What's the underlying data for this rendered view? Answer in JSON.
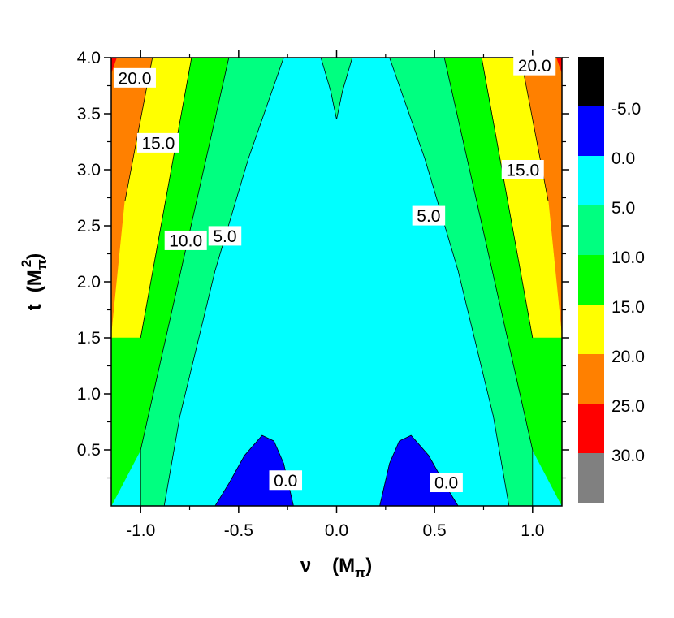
{
  "chart_data": {
    "type": "contour",
    "xlabel": {
      "main": "ν",
      "unit": "M",
      "unit_sub": "π"
    },
    "ylabel": {
      "main": "t",
      "unit": "M",
      "unit_sub": "π",
      "unit_sup": "2"
    },
    "xlim": [
      -1.15,
      1.15
    ],
    "ylim": [
      0.0,
      4.0
    ],
    "x_ticks": [
      -1.0,
      -0.5,
      0.0,
      0.5,
      1.0
    ],
    "x_tick_labels": [
      "-1.0",
      "-0.5",
      "0.0",
      "0.5",
      "1.0"
    ],
    "y_ticks": [
      0.5,
      1.0,
      1.5,
      2.0,
      2.5,
      3.0,
      3.5,
      4.0
    ],
    "y_tick_labels": [
      "0.5",
      "1.0",
      "1.5",
      "2.0",
      "2.5",
      "3.0",
      "3.5",
      "4.0"
    ],
    "levels": [
      {
        "label": "",
        "color": "#000000"
      },
      {
        "label": "-5.0",
        "color": "#0000ff"
      },
      {
        "label": "0.0",
        "color": "#00ffff"
      },
      {
        "label": "5.0",
        "color": "#00ff80"
      },
      {
        "label": "10.0",
        "color": "#00ff00"
      },
      {
        "label": "15.0",
        "color": "#ffff00"
      },
      {
        "label": "20.0",
        "color": "#ff8000"
      },
      {
        "label": "25.0",
        "color": "#ff0000"
      },
      {
        "label": "30.0",
        "color": "#808080"
      }
    ],
    "regions": [
      {
        "name": "region-above-25",
        "color": "#ff0000",
        "points": [
          [
            -1.15,
            3.85
          ],
          [
            -1.15,
            4.0
          ],
          [
            -1.12,
            4.0
          ]
        ]
      },
      {
        "name": "region-above-25",
        "color": "#ff0000",
        "points": [
          [
            1.12,
            4.0
          ],
          [
            1.15,
            4.0
          ],
          [
            1.15,
            3.85
          ]
        ]
      },
      {
        "name": "region-20-25",
        "color": "#ff8000",
        "points": [
          [
            -1.15,
            1.5
          ],
          [
            -1.15,
            3.85
          ],
          [
            -1.12,
            4.0
          ],
          [
            -0.94,
            4.0
          ],
          [
            -1.08,
            2.72
          ]
        ]
      },
      {
        "name": "region-20-25",
        "color": "#ff8000",
        "points": [
          [
            1.15,
            1.5
          ],
          [
            1.15,
            3.85
          ],
          [
            1.12,
            4.0
          ],
          [
            0.94,
            4.0
          ],
          [
            1.08,
            2.72
          ]
        ]
      },
      {
        "name": "region-15-20",
        "color": "#ffff00",
        "points": [
          [
            -1.15,
            1.5
          ],
          [
            -1.08,
            2.72
          ],
          [
            -0.94,
            4.0
          ],
          [
            -0.74,
            4.0
          ],
          [
            -1.0,
            1.5
          ]
        ]
      },
      {
        "name": "region-15-20",
        "color": "#ffff00",
        "points": [
          [
            1.15,
            1.5
          ],
          [
            1.08,
            2.72
          ],
          [
            0.94,
            4.0
          ],
          [
            0.74,
            4.0
          ],
          [
            1.0,
            1.5
          ]
        ]
      },
      {
        "name": "region-10-15",
        "color": "#00ff00",
        "points": [
          [
            -1.15,
            0.0
          ],
          [
            -1.15,
            1.5
          ],
          [
            -1.0,
            1.5
          ],
          [
            -0.74,
            4.0
          ],
          [
            -0.55,
            4.0
          ],
          [
            -1.0,
            0.5
          ]
        ]
      },
      {
        "name": "region-10-15",
        "color": "#00ff00",
        "points": [
          [
            1.15,
            0.0
          ],
          [
            1.15,
            1.5
          ],
          [
            1.0,
            1.5
          ],
          [
            0.74,
            4.0
          ],
          [
            0.55,
            4.0
          ],
          [
            1.0,
            0.5
          ]
        ]
      },
      {
        "name": "region-5-10",
        "color": "#00ff80",
        "points": [
          [
            -1.0,
            0.0
          ],
          [
            -1.0,
            0.5
          ],
          [
            -0.55,
            4.0
          ],
          [
            -0.27,
            4.0
          ],
          [
            -0.45,
            3.1
          ],
          [
            -0.62,
            2.1
          ],
          [
            -0.8,
            0.8
          ],
          [
            -0.88,
            0.0
          ]
        ]
      },
      {
        "name": "region-5-10",
        "color": "#00ff80",
        "points": [
          [
            1.0,
            0.0
          ],
          [
            1.0,
            0.5
          ],
          [
            0.55,
            4.0
          ],
          [
            0.27,
            4.0
          ],
          [
            0.45,
            3.1
          ],
          [
            0.62,
            2.1
          ],
          [
            0.8,
            0.8
          ],
          [
            0.88,
            0.0
          ]
        ]
      },
      {
        "name": "region-5-10",
        "color": "#00ff80",
        "points": [
          [
            -0.08,
            4.0
          ],
          [
            -0.03,
            3.7
          ],
          [
            0.0,
            3.45
          ],
          [
            0.03,
            3.7
          ],
          [
            0.08,
            4.0
          ]
        ]
      },
      {
        "name": "region-0-5",
        "color": "#00ffff",
        "points": [
          [
            -0.88,
            0.0
          ],
          [
            -0.8,
            0.8
          ],
          [
            -0.62,
            2.1
          ],
          [
            -0.45,
            3.1
          ],
          [
            -0.27,
            4.0
          ],
          [
            -0.08,
            4.0
          ],
          [
            -0.03,
            3.7
          ],
          [
            0.0,
            3.45
          ],
          [
            0.03,
            3.7
          ],
          [
            0.08,
            4.0
          ],
          [
            0.27,
            4.0
          ],
          [
            0.45,
            3.1
          ],
          [
            0.62,
            2.1
          ],
          [
            0.8,
            0.8
          ],
          [
            0.88,
            0.0
          ]
        ]
      },
      {
        "name": "region-below-0",
        "color": "#0000ff",
        "points": [
          [
            -0.62,
            0.0
          ],
          [
            -0.55,
            0.2
          ],
          [
            -0.47,
            0.45
          ],
          [
            -0.38,
            0.63
          ],
          [
            -0.32,
            0.58
          ],
          [
            -0.27,
            0.38
          ],
          [
            -0.22,
            0.0
          ]
        ]
      },
      {
        "name": "region-below-0",
        "color": "#0000ff",
        "points": [
          [
            0.62,
            0.0
          ],
          [
            0.55,
            0.2
          ],
          [
            0.47,
            0.45
          ],
          [
            0.38,
            0.63
          ],
          [
            0.32,
            0.58
          ],
          [
            0.27,
            0.38
          ],
          [
            0.22,
            0.0
          ]
        ]
      }
    ],
    "contour_lines": [
      {
        "name": "contour-line-0",
        "points": [
          [
            -0.62,
            0.0
          ],
          [
            -0.55,
            0.2
          ],
          [
            -0.47,
            0.45
          ],
          [
            -0.38,
            0.63
          ],
          [
            -0.32,
            0.58
          ],
          [
            -0.27,
            0.38
          ],
          [
            -0.22,
            0.0
          ]
        ]
      },
      {
        "name": "contour-line-0",
        "points": [
          [
            0.62,
            0.0
          ],
          [
            0.55,
            0.2
          ],
          [
            0.47,
            0.45
          ],
          [
            0.38,
            0.63
          ],
          [
            0.32,
            0.58
          ],
          [
            0.27,
            0.38
          ],
          [
            0.22,
            0.0
          ]
        ]
      },
      {
        "name": "contour-line-5",
        "points": [
          [
            -0.88,
            0.0
          ],
          [
            -0.8,
            0.8
          ],
          [
            -0.62,
            2.1
          ],
          [
            -0.45,
            3.1
          ],
          [
            -0.27,
            4.0
          ]
        ]
      },
      {
        "name": "contour-line-5",
        "points": [
          [
            0.88,
            0.0
          ],
          [
            0.8,
            0.8
          ],
          [
            0.62,
            2.1
          ],
          [
            0.45,
            3.1
          ],
          [
            0.27,
            4.0
          ]
        ]
      },
      {
        "name": "contour-line-5",
        "points": [
          [
            -0.08,
            4.0
          ],
          [
            -0.03,
            3.7
          ],
          [
            0.0,
            3.45
          ],
          [
            0.03,
            3.7
          ],
          [
            0.08,
            4.0
          ]
        ]
      },
      {
        "name": "contour-line-10",
        "points": [
          [
            -1.0,
            0.0
          ],
          [
            -1.0,
            0.5
          ],
          [
            -0.55,
            4.0
          ]
        ]
      },
      {
        "name": "contour-line-10",
        "points": [
          [
            1.0,
            0.0
          ],
          [
            1.0,
            0.5
          ],
          [
            0.55,
            4.0
          ]
        ]
      },
      {
        "name": "contour-line-15",
        "points": [
          [
            -1.0,
            1.5
          ],
          [
            -0.74,
            4.0
          ]
        ]
      },
      {
        "name": "contour-line-15",
        "points": [
          [
            1.0,
            1.5
          ],
          [
            0.74,
            4.0
          ]
        ]
      },
      {
        "name": "contour-line-20",
        "points": [
          [
            -1.08,
            2.72
          ],
          [
            -0.94,
            4.0
          ]
        ]
      },
      {
        "name": "contour-line-20",
        "points": [
          [
            1.08,
            2.72
          ],
          [
            0.94,
            4.0
          ]
        ]
      }
    ],
    "contour_labels": [
      {
        "text": "20.0",
        "x": -1.03,
        "y": 3.82
      },
      {
        "text": "15.0",
        "x": -0.91,
        "y": 3.24
      },
      {
        "text": "10.0",
        "x": -0.77,
        "y": 2.37
      },
      {
        "text": "5.0",
        "x": -0.57,
        "y": 2.41
      },
      {
        "text": "5.0",
        "x": 0.47,
        "y": 2.59
      },
      {
        "text": "15.0",
        "x": 0.95,
        "y": 3.0
      },
      {
        "text": "20.0",
        "x": 1.01,
        "y": 3.93
      },
      {
        "text": "0.0",
        "x": -0.26,
        "y": 0.23
      },
      {
        "text": "0.0",
        "x": 0.56,
        "y": 0.21
      }
    ]
  }
}
